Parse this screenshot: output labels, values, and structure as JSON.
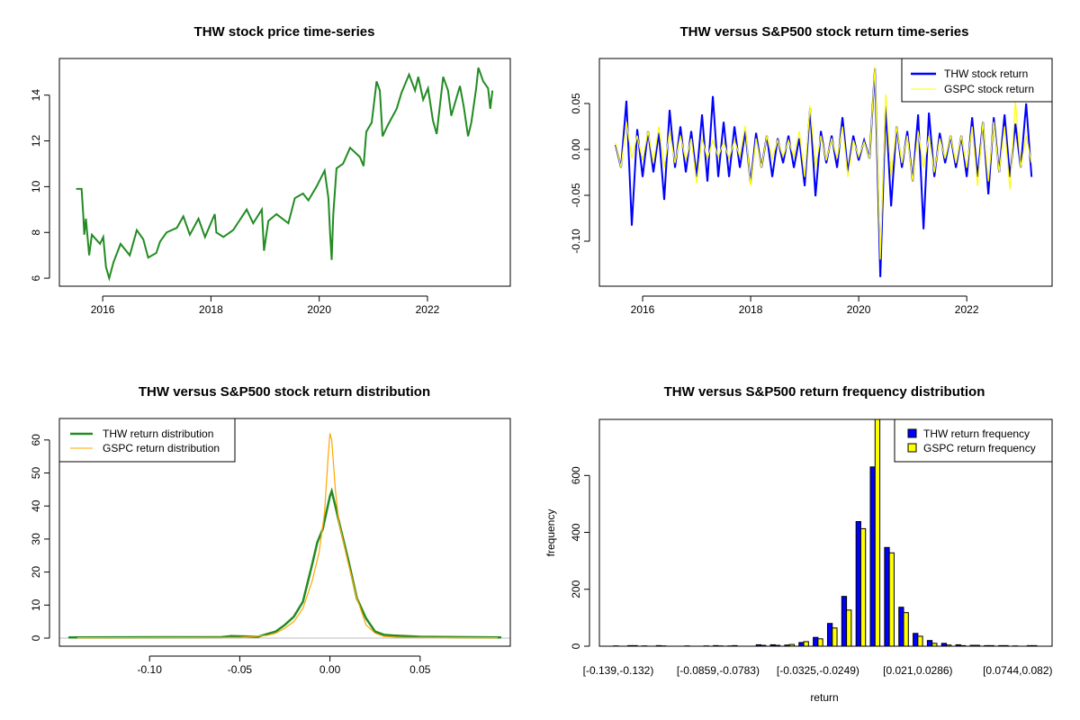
{
  "chart_data": [
    {
      "type": "line",
      "title": "THW stock price time-series",
      "xlabel": "",
      "ylabel": "",
      "xlim": [
        2015.2,
        2023.53
      ],
      "ylim": [
        5.65,
        15.6
      ],
      "xticks": [
        2016,
        2018,
        2020,
        2022
      ],
      "xtick_labels": [
        "2016",
        "2018",
        "2020",
        "2022"
      ],
      "yticks": [
        6,
        8,
        10,
        12,
        14
      ],
      "ytick_labels": [
        "6",
        "8",
        "10",
        "12",
        "14"
      ],
      "color": "#228B22",
      "x": [
        2015.51,
        2015.61,
        2015.64,
        2015.66,
        2015.69,
        2015.75,
        2015.8,
        2015.95,
        2016.01,
        2016.06,
        2016.12,
        2016.2,
        2016.33,
        2016.5,
        2016.63,
        2016.75,
        2016.84,
        2016.99,
        2017.06,
        2017.18,
        2017.37,
        2017.49,
        2017.61,
        2017.77,
        2017.89,
        2018.07,
        2018.1,
        2018.23,
        2018.41,
        2018.66,
        2018.78,
        2018.94,
        2018.98,
        2019.06,
        2019.21,
        2019.43,
        2019.55,
        2019.7,
        2019.8,
        2019.95,
        2020.1,
        2020.17,
        2020.2,
        2020.23,
        2020.26,
        2020.32,
        2020.44,
        2020.57,
        2020.75,
        2020.82,
        2020.87,
        2020.97,
        2021.06,
        2021.12,
        2021.17,
        2021.27,
        2021.43,
        2021.52,
        2021.66,
        2021.77,
        2021.83,
        2021.92,
        2022.01,
        2022.1,
        2022.17,
        2022.29,
        2022.38,
        2022.44,
        2022.6,
        2022.67,
        2022.75,
        2022.81,
        2022.9,
        2022.94,
        2023.03,
        2023.12,
        2023.16,
        2023.2
      ],
      "y": [
        9.9,
        9.9,
        8.8,
        7.9,
        8.6,
        7.0,
        7.9,
        7.5,
        7.8,
        6.5,
        6.0,
        6.7,
        7.5,
        7.0,
        8.1,
        7.7,
        6.9,
        7.1,
        7.6,
        8.0,
        8.2,
        8.7,
        7.9,
        8.6,
        7.8,
        8.8,
        8.0,
        7.8,
        8.1,
        9.0,
        8.4,
        9.0,
        7.2,
        8.5,
        8.8,
        8.4,
        9.5,
        9.7,
        9.4,
        10.0,
        10.7,
        9.5,
        8.0,
        6.8,
        8.8,
        10.8,
        11.0,
        11.7,
        11.3,
        10.9,
        12.4,
        12.8,
        14.6,
        14.2,
        12.2,
        12.7,
        13.4,
        14.1,
        14.9,
        14.2,
        14.8,
        13.8,
        14.3,
        12.9,
        12.3,
        14.8,
        14.2,
        13.1,
        14.4,
        13.5,
        12.2,
        12.8,
        14.3,
        15.2,
        14.6,
        14.3,
        13.4,
        14.2
      ]
    },
    {
      "type": "line",
      "title": "THW versus S&P500 stock return time-series",
      "xlim": [
        2015.2,
        2023.58
      ],
      "ylim": [
        -0.149,
        0.099
      ],
      "xticks": [
        2016,
        2018,
        2020,
        2022
      ],
      "xtick_labels": [
        "2016",
        "2018",
        "2020",
        "2022"
      ],
      "yticks": [
        -0.1,
        -0.05,
        0.0,
        0.05
      ],
      "ytick_labels": [
        "-0.10",
        "-0.05",
        "0.00",
        "0.05"
      ],
      "legend": {
        "position": "top-right",
        "entries": [
          "THW stock return",
          "GSPC stock return"
        ]
      },
      "x_start": 2015.5,
      "x_step": 0.1,
      "series": [
        {
          "name": "THW stock return",
          "color": "#0000FF",
          "values": [
            0.005,
            -0.02,
            0.053,
            -0.083,
            0.022,
            -0.03,
            0.02,
            -0.025,
            0.018,
            -0.055,
            0.043,
            -0.02,
            0.025,
            -0.025,
            0.02,
            -0.03,
            0.038,
            -0.035,
            0.058,
            -0.03,
            0.03,
            -0.03,
            0.025,
            -0.02,
            0.02,
            -0.037,
            0.018,
            -0.02,
            0.015,
            -0.03,
            0.012,
            -0.015,
            0.015,
            -0.02,
            0.012,
            -0.04,
            0.045,
            -0.051,
            0.02,
            -0.015,
            0.015,
            -0.02,
            0.035,
            -0.025,
            0.015,
            -0.012,
            0.01,
            -0.01,
            0.088,
            -0.139,
            0.047,
            -0.062,
            0.025,
            -0.02,
            0.02,
            -0.035,
            0.038,
            -0.087,
            0.04,
            -0.03,
            0.018,
            -0.015,
            0.015,
            -0.02,
            0.015,
            -0.03,
            0.035,
            -0.03,
            0.03,
            -0.049,
            0.035,
            -0.025,
            0.038,
            -0.03,
            0.028,
            -0.02,
            0.05,
            -0.03
          ]
        },
        {
          "name": "GSPC stock return",
          "color": "#FFFF00",
          "values": [
            0.007,
            -0.02,
            0.03,
            -0.01,
            0.015,
            -0.012,
            0.02,
            -0.015,
            0.025,
            -0.02,
            0.02,
            -0.015,
            0.015,
            -0.012,
            0.012,
            -0.037,
            0.012,
            -0.01,
            0.01,
            -0.008,
            0.008,
            -0.01,
            0.01,
            -0.008,
            0.026,
            -0.04,
            0.012,
            -0.02,
            0.015,
            -0.01,
            0.01,
            -0.008,
            0.01,
            -0.008,
            0.02,
            -0.03,
            0.048,
            -0.02,
            0.015,
            -0.012,
            0.012,
            -0.01,
            0.025,
            -0.03,
            0.01,
            -0.008,
            0.008,
            -0.01,
            0.09,
            -0.12,
            0.06,
            -0.03,
            0.025,
            -0.015,
            0.015,
            -0.035,
            0.02,
            -0.02,
            0.015,
            -0.025,
            0.012,
            -0.01,
            0.015,
            -0.015,
            0.015,
            -0.02,
            0.025,
            -0.04,
            0.03,
            -0.035,
            0.03,
            -0.025,
            0.025,
            -0.044,
            0.053,
            -0.02,
            0.015,
            -0.015
          ]
        }
      ]
    },
    {
      "type": "line",
      "title": "THW versus S&P500 stock return distribution",
      "xlim": [
        -0.15,
        0.1
      ],
      "ylim": [
        -2.45,
        66.5
      ],
      "xticks": [
        -0.1,
        -0.05,
        0.0,
        0.05
      ],
      "xtick_labels": [
        "-0.10",
        "-0.05",
        "0.00",
        "0.05"
      ],
      "yticks": [
        0,
        10,
        20,
        30,
        40,
        50,
        60
      ],
      "ytick_labels": [
        "0",
        "10",
        "20",
        "30",
        "40",
        "50",
        "60"
      ],
      "legend": {
        "position": "top-left",
        "entries": [
          "THW return distribution",
          "GSPC return distribution"
        ]
      },
      "series": [
        {
          "name": "THW return distribution",
          "color": "#228B22",
          "x": [
            -0.145,
            -0.06,
            -0.055,
            -0.04,
            -0.035,
            -0.03,
            -0.025,
            -0.02,
            -0.015,
            -0.01,
            -0.007,
            -0.004,
            -0.002,
            0,
            0.001,
            0.003,
            0.006,
            0.01,
            0.015,
            0.02,
            0.025,
            0.03,
            0.035,
            0.05,
            0.07,
            0.095
          ],
          "y": [
            0.2,
            0.3,
            0.6,
            0.4,
            1.2,
            2,
            4,
            6.5,
            11,
            22,
            29,
            33,
            38,
            43,
            44.5,
            40,
            33,
            24,
            12,
            6,
            2,
            1,
            0.8,
            0.4,
            0.3,
            0.2
          ]
        },
        {
          "name": "GSPC return distribution",
          "color": "#FFA500",
          "x": [
            -0.14,
            -0.05,
            -0.035,
            -0.03,
            -0.025,
            -0.02,
            -0.015,
            -0.01,
            -0.006,
            -0.003,
            -0.001,
            0,
            0.001,
            0.003,
            0.005,
            0.01,
            0.015,
            0.02,
            0.025,
            0.03,
            0.04,
            0.093
          ],
          "y": [
            0.1,
            0.2,
            0.8,
            1.5,
            3,
            5,
            9,
            17,
            26,
            38,
            55,
            62,
            60,
            45,
            35,
            23,
            12,
            4,
            1.5,
            0.5,
            0.2,
            0.1
          ]
        }
      ]
    },
    {
      "type": "bar",
      "title": "THW versus S&P500 return frequency distribution",
      "xlabel": "return",
      "ylabel": "frequency",
      "ylim": [
        0,
        797
      ],
      "yticks": [
        0,
        200,
        400,
        600
      ],
      "ytick_labels": [
        "0",
        "200",
        "400",
        "600"
      ],
      "category_labels_shown": [
        "[-0.139,-0.132)",
        "[-0.0859,-0.0783)",
        "[-0.0325,-0.0249)",
        "[0.021,0.0286)",
        "[0.0744,0.082)"
      ],
      "category_label_indices": [
        0,
        7,
        14,
        21,
        28
      ],
      "legend": {
        "position": "top-right",
        "entries": [
          "THW return frequency",
          "GSPC return frequency"
        ]
      },
      "series": [
        {
          "name": "THW return frequency",
          "color": "#0000FF",
          "values": [
            1,
            2,
            1,
            2,
            0,
            1,
            0,
            2,
            1,
            0,
            5,
            5,
            4,
            13,
            31,
            80,
            175,
            438,
            630,
            347,
            137,
            45,
            20,
            10,
            5,
            3,
            2,
            2,
            1,
            2
          ]
        },
        {
          "name": "GSPC return frequency",
          "color": "#FFFF00",
          "values": [
            0,
            2,
            0,
            1,
            0,
            0,
            1,
            1,
            2,
            0,
            3,
            3,
            6,
            16,
            26,
            64,
            127,
            413,
            850,
            328,
            118,
            35,
            10,
            4,
            2,
            3,
            2,
            2,
            0,
            2
          ]
        }
      ]
    }
  ]
}
